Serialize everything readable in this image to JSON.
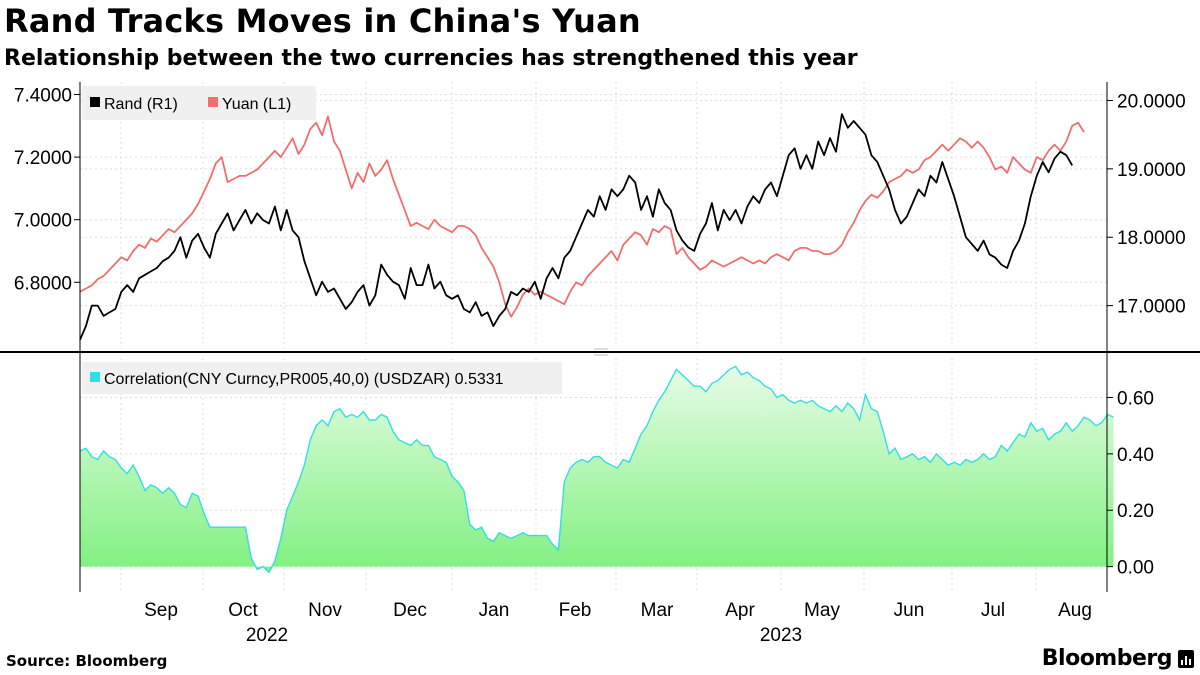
{
  "header": {
    "title": "Rand Tracks Moves in China's Yuan",
    "subtitle": "Relationship between the two currencies has strengthened this year"
  },
  "footer": {
    "source": "Source: Bloomberg",
    "brand": "Bloomberg"
  },
  "chart_data": [
    {
      "type": "line",
      "panel": "top",
      "legend": [
        {
          "name": "Rand (R1)",
          "color": "#000000"
        },
        {
          "name": "Yuan (L1)",
          "color": "#f06e6e"
        }
      ],
      "legend_placement": "top-left",
      "left_axis": {
        "ticks": [
          "7.4000",
          "7.2000",
          "7.0000",
          "6.8000"
        ],
        "ylim": [
          6.59,
          7.44
        ]
      },
      "right_axis": {
        "ticks": [
          "20.0000",
          "19.0000",
          "18.0000",
          "17.0000"
        ],
        "ylim": [
          16.38,
          20.27
        ]
      },
      "grid": true,
      "series": [
        {
          "name": "Yuan (L1)",
          "axis": "left",
          "color": "#f06e6e",
          "values": [
            6.77,
            6.78,
            6.79,
            6.81,
            6.82,
            6.84,
            6.86,
            6.88,
            6.87,
            6.9,
            6.92,
            6.91,
            6.94,
            6.93,
            6.95,
            6.97,
            6.96,
            6.98,
            7.0,
            7.02,
            7.05,
            7.09,
            7.13,
            7.18,
            7.2,
            7.12,
            7.13,
            7.14,
            7.14,
            7.15,
            7.16,
            7.18,
            7.2,
            7.22,
            7.2,
            7.23,
            7.26,
            7.21,
            7.24,
            7.29,
            7.31,
            7.27,
            7.33,
            7.25,
            7.22,
            7.16,
            7.1,
            7.15,
            7.12,
            7.18,
            7.14,
            7.16,
            7.19,
            7.13,
            7.08,
            7.03,
            6.98,
            6.99,
            6.98,
            6.97,
            7.0,
            6.98,
            6.97,
            6.96,
            6.98,
            6.98,
            6.97,
            6.95,
            6.91,
            6.88,
            6.85,
            6.8,
            6.73,
            6.69,
            6.72,
            6.76,
            6.78,
            6.76,
            6.77,
            6.76,
            6.75,
            6.74,
            6.73,
            6.77,
            6.8,
            6.79,
            6.82,
            6.84,
            6.86,
            6.88,
            6.9,
            6.87,
            6.92,
            6.94,
            6.96,
            6.95,
            6.92,
            6.97,
            6.96,
            6.98,
            6.97,
            6.89,
            6.91,
            6.88,
            6.86,
            6.84,
            6.85,
            6.87,
            6.86,
            6.85,
            6.86,
            6.87,
            6.88,
            6.87,
            6.86,
            6.87,
            6.86,
            6.88,
            6.89,
            6.88,
            6.87,
            6.9,
            6.91,
            6.91,
            6.9,
            6.9,
            6.89,
            6.89,
            6.9,
            6.92,
            6.96,
            6.99,
            7.03,
            7.06,
            7.08,
            7.07,
            7.09,
            7.12,
            7.13,
            7.14,
            7.16,
            7.15,
            7.16,
            7.19,
            7.2,
            7.22,
            7.24,
            7.22,
            7.24,
            7.26,
            7.25,
            7.23,
            7.25,
            7.23,
            7.2,
            7.16,
            7.17,
            7.15,
            7.2,
            7.18,
            7.16,
            7.15,
            7.2,
            7.19,
            7.22,
            7.24,
            7.22,
            7.25,
            7.3,
            7.31,
            7.28
          ]
        },
        {
          "name": "Rand (R1)",
          "axis": "right",
          "color": "#000000",
          "values": [
            16.5,
            16.7,
            17.0,
            17.0,
            16.85,
            16.9,
            16.95,
            17.2,
            17.3,
            17.2,
            17.4,
            17.45,
            17.5,
            17.55,
            17.65,
            17.7,
            17.8,
            18.0,
            17.7,
            17.95,
            18.05,
            17.85,
            17.7,
            18.05,
            18.2,
            18.35,
            18.1,
            18.25,
            18.4,
            18.2,
            18.35,
            18.25,
            18.2,
            18.45,
            18.1,
            18.4,
            18.1,
            18.0,
            17.65,
            17.4,
            17.15,
            17.35,
            17.2,
            17.25,
            17.1,
            16.95,
            17.05,
            17.2,
            17.3,
            17.0,
            17.15,
            17.6,
            17.45,
            17.35,
            17.3,
            17.1,
            17.55,
            17.3,
            17.3,
            17.6,
            17.25,
            17.35,
            17.15,
            17.1,
            17.15,
            16.95,
            16.9,
            17.05,
            16.85,
            16.9,
            16.7,
            16.85,
            16.95,
            17.2,
            17.15,
            17.25,
            17.2,
            17.35,
            17.1,
            17.4,
            17.55,
            17.4,
            17.7,
            17.8,
            18.0,
            18.2,
            18.4,
            18.3,
            18.6,
            18.4,
            18.7,
            18.6,
            18.7,
            18.9,
            18.8,
            18.4,
            18.6,
            18.3,
            18.7,
            18.5,
            18.4,
            18.1,
            17.95,
            17.85,
            17.8,
            18.05,
            18.2,
            18.5,
            18.1,
            18.4,
            18.25,
            18.4,
            18.2,
            18.45,
            18.6,
            18.5,
            18.7,
            18.8,
            18.6,
            18.9,
            19.2,
            19.3,
            19.0,
            19.2,
            19.0,
            19.4,
            19.2,
            19.45,
            19.25,
            19.8,
            19.6,
            19.7,
            19.6,
            19.5,
            19.2,
            19.1,
            18.9,
            18.7,
            18.4,
            18.2,
            18.3,
            18.5,
            18.7,
            18.6,
            18.9,
            18.8,
            19.1,
            18.85,
            18.6,
            18.3,
            18.0,
            17.9,
            17.8,
            17.95,
            17.75,
            17.7,
            17.6,
            17.55,
            17.8,
            17.95,
            18.2,
            18.6,
            18.9,
            19.1,
            18.95,
            19.15,
            19.25,
            19.2,
            19.05
          ]
        }
      ]
    },
    {
      "type": "area",
      "panel": "bottom",
      "legend": [
        {
          "name": "Correlation(CNY Curncy,PR005,40,0) (USDZAR)",
          "value": "0.5331",
          "color": "#33dde8"
        }
      ],
      "legend_placement": "top-left",
      "right_axis": {
        "ticks": [
          "0.60",
          "0.40",
          "0.20",
          "0.00"
        ],
        "ylim": [
          -0.09,
          0.74
        ]
      },
      "grid": true,
      "series": [
        {
          "name": "Correlation(CNY Curncy,PR005,40,0) (USDZAR)",
          "values": [
            0.41,
            0.42,
            0.39,
            0.38,
            0.41,
            0.39,
            0.38,
            0.35,
            0.33,
            0.36,
            0.32,
            0.27,
            0.29,
            0.28,
            0.26,
            0.28,
            0.26,
            0.22,
            0.21,
            0.26,
            0.25,
            0.19,
            0.14,
            0.14,
            0.14,
            0.14,
            0.14,
            0.14,
            0.14,
            0.03,
            -0.01,
            0.0,
            -0.02,
            0.02,
            0.1,
            0.2,
            0.25,
            0.3,
            0.36,
            0.45,
            0.5,
            0.52,
            0.5,
            0.55,
            0.56,
            0.53,
            0.54,
            0.53,
            0.55,
            0.52,
            0.52,
            0.54,
            0.53,
            0.48,
            0.45,
            0.44,
            0.43,
            0.45,
            0.43,
            0.43,
            0.39,
            0.38,
            0.37,
            0.32,
            0.3,
            0.27,
            0.15,
            0.13,
            0.14,
            0.1,
            0.09,
            0.12,
            0.11,
            0.1,
            0.11,
            0.12,
            0.11,
            0.11,
            0.11,
            0.11,
            0.08,
            0.06,
            0.3,
            0.35,
            0.37,
            0.38,
            0.37,
            0.39,
            0.39,
            0.37,
            0.36,
            0.35,
            0.38,
            0.37,
            0.42,
            0.47,
            0.5,
            0.55,
            0.59,
            0.62,
            0.66,
            0.7,
            0.68,
            0.66,
            0.64,
            0.64,
            0.62,
            0.65,
            0.66,
            0.68,
            0.7,
            0.71,
            0.68,
            0.69,
            0.67,
            0.66,
            0.64,
            0.63,
            0.6,
            0.61,
            0.59,
            0.58,
            0.59,
            0.58,
            0.59,
            0.57,
            0.56,
            0.55,
            0.57,
            0.55,
            0.58,
            0.56,
            0.52,
            0.61,
            0.56,
            0.55,
            0.48,
            0.4,
            0.42,
            0.38,
            0.39,
            0.4,
            0.38,
            0.39,
            0.37,
            0.4,
            0.38,
            0.36,
            0.37,
            0.36,
            0.38,
            0.37,
            0.38,
            0.4,
            0.38,
            0.39,
            0.43,
            0.41,
            0.44,
            0.47,
            0.46,
            0.51,
            0.48,
            0.49,
            0.45,
            0.47,
            0.48,
            0.51,
            0.48,
            0.5,
            0.53,
            0.52,
            0.5,
            0.51,
            0.54,
            0.53
          ]
        }
      ]
    }
  ],
  "x_axis": {
    "months": [
      "Sep",
      "Oct",
      "Nov",
      "Dec",
      "Jan",
      "Feb",
      "Mar",
      "Apr",
      "May",
      "Jun",
      "Jul",
      "Aug"
    ],
    "years": [
      "2022",
      "2023"
    ]
  },
  "colors": {
    "yuan": "#f06e6e",
    "rand": "#000000",
    "correlation_line": "#33dde8",
    "area_top": "#e6fce6",
    "area_bottom": "#80f080",
    "grid": "#dcdcdc"
  }
}
